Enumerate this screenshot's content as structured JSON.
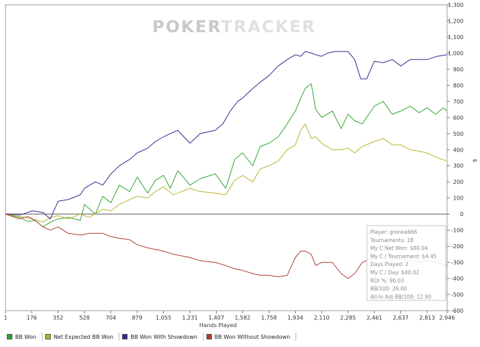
{
  "watermark": {
    "part1": "POKER",
    "part2": "TRACKER"
  },
  "chart_data": {
    "type": "line",
    "xlabel": "Hands Played",
    "ylabel": "$",
    "xlim": [
      1,
      2946
    ],
    "ylim": [
      -600,
      1300
    ],
    "x_ticks": [
      1,
      176,
      352,
      528,
      704,
      879,
      1055,
      1231,
      1407,
      1582,
      1758,
      1934,
      2110,
      2285,
      2461,
      2637,
      2813,
      2946
    ],
    "x_tick_labels": [
      "1",
      "176",
      "352",
      "528",
      "704",
      "879",
      "1,055",
      "1,231",
      "1,407",
      "1,582",
      "1,758",
      "1,934",
      "2,110",
      "2,285",
      "2,461",
      "2,637",
      "2,813",
      "2,946"
    ],
    "y_ticks": [
      -600,
      -500,
      -400,
      -300,
      -200,
      -100,
      0,
      100,
      200,
      300,
      400,
      500,
      600,
      700,
      800,
      900,
      1000,
      1100,
      1200,
      1300
    ],
    "y_tick_labels": [
      "-600",
      "-500",
      "-400",
      "-300",
      "-200",
      "-100",
      "0",
      "100",
      "200",
      "300",
      "400",
      "500",
      "600",
      "700",
      "800",
      "900",
      "1,000",
      "1,100",
      "1,200",
      "1,300"
    ],
    "grid": false,
    "legend_position": "bottom-left",
    "series": [
      {
        "name": "BB Won",
        "color": "#2ea02e",
        "x": [
          1,
          90,
          150,
          200,
          250,
          300,
          352,
          420,
          500,
          528,
          600,
          650,
          704,
          760,
          830,
          879,
          950,
          1000,
          1055,
          1100,
          1150,
          1231,
          1300,
          1400,
          1470,
          1530,
          1582,
          1650,
          1700,
          1758,
          1820,
          1880,
          1934,
          1970,
          2000,
          2040,
          2070,
          2110,
          2180,
          2240,
          2285,
          2330,
          2380,
          2461,
          2520,
          2580,
          2637,
          2700,
          2760,
          2813,
          2870,
          2920,
          2946
        ],
        "y": [
          0,
          -20,
          -45,
          -40,
          -80,
          -50,
          -30,
          -20,
          -40,
          60,
          0,
          110,
          70,
          180,
          140,
          230,
          130,
          210,
          240,
          160,
          270,
          180,
          220,
          250,
          160,
          340,
          380,
          300,
          420,
          440,
          480,
          560,
          640,
          720,
          780,
          810,
          650,
          600,
          640,
          530,
          620,
          580,
          560,
          670,
          700,
          620,
          640,
          670,
          630,
          660,
          620,
          660,
          640
        ]
      },
      {
        "name": "Net Expected BB Won",
        "color": "#b7b22a",
        "x": [
          1,
          100,
          180,
          250,
          300,
          352,
          420,
          500,
          560,
          650,
          704,
          760,
          830,
          879,
          950,
          1000,
          1055,
          1120,
          1231,
          1300,
          1400,
          1470,
          1530,
          1582,
          1650,
          1700,
          1758,
          1820,
          1880,
          1934,
          1970,
          2000,
          2040,
          2070,
          2110,
          2180,
          2240,
          2285,
          2330,
          2380,
          2461,
          2520,
          2580,
          2637,
          2700,
          2760,
          2813,
          2880,
          2946
        ],
        "y": [
          0,
          -15,
          -30,
          -50,
          -20,
          -10,
          -30,
          0,
          -20,
          30,
          20,
          60,
          90,
          110,
          100,
          140,
          170,
          120,
          160,
          140,
          130,
          120,
          210,
          240,
          200,
          280,
          300,
          330,
          400,
          430,
          520,
          560,
          470,
          480,
          440,
          400,
          400,
          410,
          380,
          420,
          450,
          470,
          430,
          430,
          400,
          390,
          380,
          350,
          330
        ]
      },
      {
        "name": "BB Won With Showdown",
        "color": "#2b2b8f",
        "x": [
          1,
          100,
          180,
          250,
          300,
          352,
          420,
          500,
          528,
          600,
          650,
          704,
          760,
          830,
          879,
          950,
          1000,
          1055,
          1100,
          1150,
          1231,
          1300,
          1400,
          1450,
          1500,
          1550,
          1582,
          1650,
          1700,
          1758,
          1820,
          1880,
          1934,
          1970,
          2000,
          2040,
          2070,
          2110,
          2150,
          2200,
          2285,
          2330,
          2370,
          2410,
          2461,
          2520,
          2580,
          2637,
          2700,
          2760,
          2813,
          2880,
          2946
        ],
        "y": [
          0,
          -5,
          20,
          10,
          -30,
          80,
          90,
          120,
          160,
          200,
          180,
          250,
          300,
          340,
          380,
          410,
          450,
          480,
          500,
          520,
          440,
          500,
          520,
          560,
          640,
          700,
          720,
          780,
          820,
          860,
          920,
          960,
          990,
          980,
          1010,
          1000,
          990,
          980,
          1000,
          1010,
          1010,
          960,
          840,
          840,
          950,
          940,
          960,
          920,
          960,
          960,
          960,
          980,
          990
        ]
      },
      {
        "name": "BB Won Without Showdown",
        "color": "#b03a2e",
        "x": [
          1,
          90,
          150,
          200,
          250,
          300,
          352,
          420,
          500,
          560,
          650,
          704,
          760,
          830,
          879,
          950,
          1000,
          1055,
          1120,
          1231,
          1300,
          1400,
          1470,
          1530,
          1582,
          1650,
          1700,
          1758,
          1820,
          1880,
          1934,
          1970,
          2000,
          2040,
          2070,
          2110,
          2180,
          2240,
          2285,
          2330,
          2380,
          2461,
          2520,
          2580,
          2637,
          2700,
          2760,
          2813,
          2880,
          2946
        ],
        "y": [
          0,
          -30,
          -15,
          -40,
          -80,
          -100,
          -80,
          -120,
          -130,
          -120,
          -120,
          -140,
          -150,
          -160,
          -190,
          -210,
          -220,
          -230,
          -250,
          -270,
          -290,
          -300,
          -320,
          -340,
          -350,
          -370,
          -380,
          -380,
          -390,
          -380,
          -270,
          -230,
          -230,
          -250,
          -320,
          -300,
          -300,
          -370,
          -400,
          -370,
          -300,
          -270,
          -250,
          -260,
          -280,
          -290,
          -300,
          -290,
          -300,
          -320
        ]
      }
    ]
  },
  "stats": {
    "lines": [
      "Player: grenka666",
      "Tournaments: 18",
      "My C Net Won: $80.04",
      "My C / Tournament: $4.45",
      "Days Played: 2",
      "My C / Day: $40.02",
      "ROI %: 90.03",
      "BB/100: 26.00",
      "All-In Adj BB/100: 12.90"
    ]
  }
}
